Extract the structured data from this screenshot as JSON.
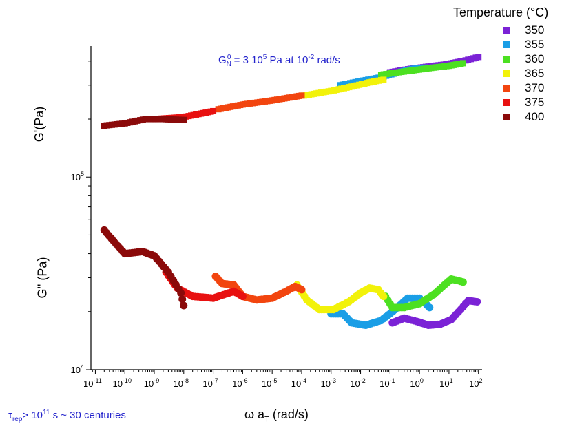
{
  "chart_data": {
    "type": "scatter",
    "xlabel": "ω a",
    "xlabel_sub": "T",
    "xlabel_unit": " (rad/s)",
    "ylabel_upper": "G'(Pa)",
    "ylabel_lower": "G'' (Pa)",
    "x_scale": "log",
    "y_scale": "log",
    "x_ticks": [
      {
        "base": "10",
        "exp": "-11"
      },
      {
        "base": "10",
        "exp": "-10"
      },
      {
        "base": "10",
        "exp": "-9"
      },
      {
        "base": "10",
        "exp": "-8"
      },
      {
        "base": "10",
        "exp": "-7"
      },
      {
        "base": "10",
        "exp": "-6"
      },
      {
        "base": "10",
        "exp": "-5"
      },
      {
        "base": "10",
        "exp": "-4"
      },
      {
        "base": "10",
        "exp": "-3"
      },
      {
        "base": "10",
        "exp": "-2"
      },
      {
        "base": "10",
        "exp": "-1"
      },
      {
        "base": "10",
        "exp": "0"
      },
      {
        "base": "10",
        "exp": "1"
      },
      {
        "base": "10",
        "exp": "2"
      }
    ],
    "y_ticks": [
      {
        "base": "10",
        "exp": "4"
      },
      {
        "base": "10",
        "exp": "5"
      }
    ],
    "grid": false,
    "legend_placement": "top-right",
    "legend_title": "Temperature (°C)",
    "annotations": {
      "gn_main": "G",
      "gn_sub": "N",
      "gn_sup": "0",
      "gn_text1": " = 3 10",
      "gn_exp1": "5",
      "gn_text2": " Pa at 10",
      "gn_exp2": "-2",
      "gn_text3": " rad/s",
      "tau_main": "τ",
      "tau_sub": "rep",
      "tau_text1": "> 10",
      "tau_exp": "11",
      "tau_text2": " s ~ 30 centuries"
    },
    "series": [
      {
        "name": "350",
        "color": "#7b22d6",
        "Gp": [
          [
            0.1,
            350000
          ],
          [
            0.5,
            365000
          ],
          [
            2,
            375000
          ],
          [
            8,
            385000
          ],
          [
            30,
            400000
          ],
          [
            100,
            420000
          ]
        ],
        "Gpp": [
          [
            0.12,
            17500
          ],
          [
            0.3,
            18500
          ],
          [
            0.8,
            17800
          ],
          [
            2,
            17000
          ],
          [
            5,
            17200
          ],
          [
            12,
            18200
          ],
          [
            25,
            20500
          ],
          [
            45,
            22800
          ],
          [
            90,
            22500
          ]
        ]
      },
      {
        "name": "355",
        "color": "#1a9ee6",
        "Gp": [
          [
            0.002,
            300000
          ],
          [
            0.01,
            315000
          ],
          [
            0.05,
            330000
          ],
          [
            0.2,
            350000
          ],
          [
            0.6,
            365000
          ],
          [
            1.5,
            370000
          ]
        ],
        "Gpp": [
          [
            0.001,
            19500
          ],
          [
            0.0025,
            19500
          ],
          [
            0.005,
            17500
          ],
          [
            0.015,
            17000
          ],
          [
            0.05,
            18000
          ],
          [
            0.15,
            20500
          ],
          [
            0.4,
            23500
          ],
          [
            1,
            23500
          ],
          [
            2.2,
            21000
          ]
        ]
      },
      {
        "name": "360",
        "color": "#4ce021",
        "Gp": [
          [
            0.05,
            340000
          ],
          [
            0.2,
            350000
          ],
          [
            0.8,
            360000
          ],
          [
            3,
            370000
          ],
          [
            10,
            378000
          ],
          [
            30,
            390000
          ]
        ],
        "Gpp": [
          [
            0.07,
            24000
          ],
          [
            0.12,
            21000
          ],
          [
            0.3,
            21000
          ],
          [
            1,
            22000
          ],
          [
            3,
            24500
          ],
          [
            7,
            27500
          ],
          [
            12,
            29500
          ],
          [
            20,
            29000
          ],
          [
            30,
            28500
          ]
        ]
      },
      {
        "name": "365",
        "color": "#f2f20a",
        "Gp": [
          [
            0.00012,
            265000
          ],
          [
            0.001,
            280000
          ],
          [
            0.005,
            295000
          ],
          [
            0.02,
            310000
          ],
          [
            0.06,
            320000
          ]
        ],
        "Gpp": [
          [
            7e-05,
            27500
          ],
          [
            0.00015,
            23000
          ],
          [
            0.0004,
            20500
          ],
          [
            0.0012,
            20500
          ],
          [
            0.004,
            22500
          ],
          [
            0.01,
            25000
          ],
          [
            0.02,
            26500
          ],
          [
            0.04,
            26000
          ],
          [
            0.06,
            24000
          ]
        ]
      },
      {
        "name": "370",
        "color": "#f2450f",
        "Gp": [
          [
            1.5e-07,
            225000
          ],
          [
            1e-06,
            238000
          ],
          [
            1e-05,
            250000
          ],
          [
            0.0001,
            265000
          ]
        ],
        "Gpp": [
          [
            1.2e-07,
            30500
          ],
          [
            2e-07,
            28000
          ],
          [
            5e-07,
            27500
          ],
          [
            1e-06,
            24000
          ],
          [
            3e-06,
            23000
          ],
          [
            1e-05,
            23500
          ],
          [
            3e-05,
            25500
          ],
          [
            6e-05,
            27000
          ],
          [
            0.0001,
            26000
          ]
        ]
      },
      {
        "name": "375",
        "color": "#e81111",
        "Gp": [
          [
            1e-09,
            200000
          ],
          [
            1e-08,
            205000
          ],
          [
            1e-07,
            220000
          ]
        ],
        "Gpp": [
          [
            2.5e-09,
            32000
          ],
          [
            6e-09,
            26500
          ],
          [
            2e-08,
            24000
          ],
          [
            1e-07,
            23500
          ],
          [
            5e-07,
            25500
          ],
          [
            1e-06,
            24000
          ]
        ]
      },
      {
        "name": "400",
        "color": "#8b0a0a",
        "Gp": [
          [
            2e-11,
            185000
          ],
          [
            1e-10,
            190000
          ],
          [
            5e-10,
            200000
          ],
          [
            2e-09,
            200000
          ],
          [
            1e-08,
            198000
          ]
        ],
        "Gpp": [
          [
            2e-11,
            53000
          ],
          [
            5e-11,
            45000
          ],
          [
            1e-10,
            40000
          ],
          [
            4e-10,
            41000
          ],
          [
            1e-09,
            39000
          ],
          [
            3e-09,
            32000
          ],
          [
            8e-09,
            25000
          ],
          [
            1e-08,
            21500
          ]
        ]
      }
    ]
  }
}
